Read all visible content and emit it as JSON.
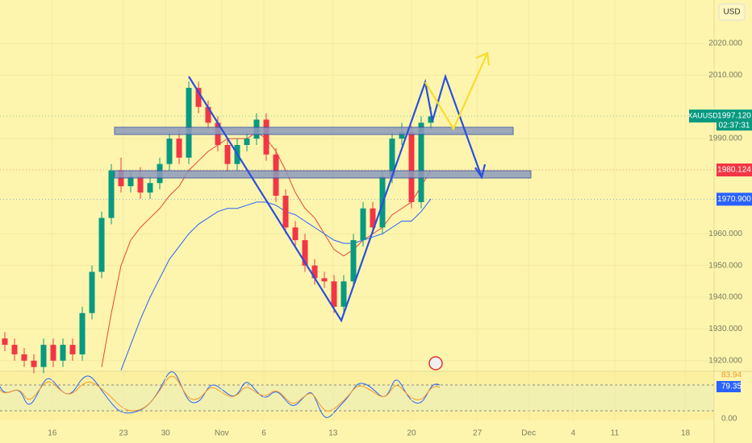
{
  "chart_data": {
    "type": "candlestick",
    "symbol": "XAUUSD",
    "currency": "USD",
    "up_color": "#089981",
    "down_color": "#f23645",
    "open": [
      1927,
      1925,
      1922,
      1920,
      1918,
      1925,
      1920,
      1925,
      1922,
      1935,
      1948,
      1965,
      1980,
      1975,
      1978,
      1973,
      1976,
      1982,
      1990,
      1984,
      2006,
      2000,
      1995,
      1988,
      1982,
      1988,
      1990,
      1996,
      1985,
      1972,
      1962,
      1958,
      1950,
      1946,
      1945,
      1937,
      1945,
      1958,
      1968,
      1962,
      1978,
      1990,
      1992,
      1970,
      1995
    ],
    "high": [
      1929,
      1927,
      1924,
      1922,
      1927,
      1927,
      1927,
      1927,
      1937,
      1950,
      1967,
      1982,
      1984,
      1980,
      1981,
      1978,
      1984,
      1992,
      1993,
      2008,
      2008,
      2002,
      1997,
      1990,
      1990,
      1992,
      1998,
      1998,
      1987,
      1974,
      1964,
      1960,
      1952,
      1948,
      1947,
      1947,
      1960,
      1970,
      1970,
      1980,
      1992,
      1995,
      1994,
      1997,
      2000
    ],
    "low": [
      1923,
      1920,
      1918,
      1916,
      1916,
      1918,
      1918,
      1920,
      1920,
      1933,
      1946,
      1963,
      1973,
      1973,
      1971,
      1971,
      1974,
      1980,
      1982,
      1982,
      1998,
      1993,
      1986,
      1980,
      1980,
      1986,
      1988,
      1983,
      1970,
      1960,
      1956,
      1948,
      1944,
      1943,
      1935,
      1935,
      1943,
      1956,
      1960,
      1960,
      1976,
      1988,
      1968,
      1968,
      1993
    ],
    "close": [
      1925,
      1922,
      1920,
      1918,
      1925,
      1920,
      1925,
      1922,
      1935,
      1948,
      1965,
      1980,
      1975,
      1978,
      1973,
      1976,
      1982,
      1990,
      1984,
      2006,
      2000,
      1995,
      1988,
      1982,
      1988,
      1990,
      1996,
      1985,
      1972,
      1962,
      1958,
      1950,
      1946,
      1945,
      1937,
      1945,
      1958,
      1968,
      1962,
      1978,
      1990,
      1992,
      1970,
      1995,
      1997
    ],
    "series": [
      {
        "color": "#e8453c",
        "values": [
          null,
          null,
          null,
          null,
          null,
          null,
          null,
          null,
          null,
          null,
          1918,
          1935,
          1950,
          1958,
          1962,
          1965,
          1968,
          1972,
          1975,
          1980,
          1983,
          1986,
          1988,
          1990,
          1990,
          1990,
          1992,
          1990,
          1986,
          1980,
          1973,
          1968,
          1965,
          1960,
          1955,
          1953,
          1955,
          1958,
          1960,
          1962,
          1966,
          1968,
          1970,
          1975,
          1980
        ]
      },
      {
        "color": "#2962ff",
        "values": [
          null,
          null,
          null,
          null,
          null,
          null,
          null,
          null,
          null,
          null,
          null,
          null,
          1917,
          1925,
          1933,
          1940,
          1946,
          1952,
          1956,
          1960,
          1963,
          1965,
          1967,
          1968,
          1968,
          1969,
          1970,
          1970,
          1969,
          1967,
          1966,
          1964,
          1962,
          1960,
          1958,
          1957,
          1957,
          1958,
          1959,
          1960,
          1962,
          1964,
          1964,
          1967,
          1971
        ]
      }
    ],
    "ylim": [
      1916.9,
      2033.7
    ],
    "yticks": [
      {
        "value": 2020,
        "label": "2020.000"
      },
      {
        "value": 2010,
        "label": "2010.000"
      },
      {
        "value": 1990,
        "label": "1990.000"
      },
      {
        "value": 1960,
        "label": "1960.000"
      },
      {
        "value": 1950,
        "label": "1950.000"
      },
      {
        "value": 1940,
        "label": "1940.000"
      },
      {
        "value": 1930,
        "label": "1930.000"
      },
      {
        "value": 1920,
        "label": "1920.000"
      }
    ],
    "xlim": [
      -0.5,
      73.25
    ],
    "xticks": [
      {
        "value": 4.9,
        "label": "16"
      },
      {
        "value": 12.25,
        "label": "23"
      },
      {
        "value": 16.6,
        "label": "30"
      },
      {
        "value": 22.4,
        "label": "Nov"
      },
      {
        "value": 26.75,
        "label": "6"
      },
      {
        "value": 33.9,
        "label": "13"
      },
      {
        "value": 42,
        "label": "20"
      },
      {
        "value": 48.8,
        "label": "27"
      },
      {
        "value": 54.1,
        "label": "Dec"
      },
      {
        "value": 58.7,
        "label": "4"
      },
      {
        "value": 63,
        "label": "11"
      },
      {
        "value": 70.3,
        "label": "18"
      }
    ],
    "price_labels": [
      {
        "value": 1997.12,
        "label": "1997.120",
        "timer": "02:37:31",
        "color": "#089981"
      },
      {
        "value": 1980.124,
        "label": "1980.124",
        "color": "#f23645"
      },
      {
        "value": 1970.9,
        "label": "1970.900",
        "color": "#2962ff"
      }
    ],
    "oscillator_ticks": [
      "83.94",
      "79.35",
      "0.00"
    ]
  }
}
